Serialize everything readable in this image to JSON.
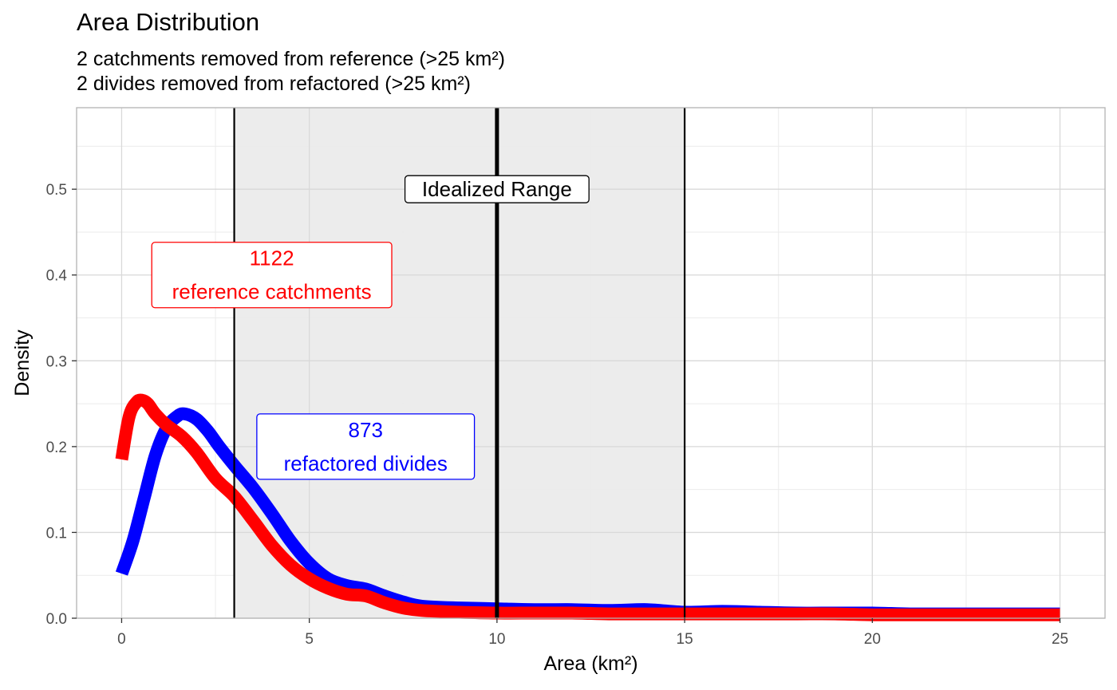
{
  "chart_data": {
    "type": "line",
    "title": "Area Distribution",
    "subtitle": [
      "2 catchments removed from reference (>25 km²)",
      "2 divides removed from refactored (>25 km²)"
    ],
    "xlabel": "Area (km²)",
    "ylabel": "Density",
    "xlim": [
      -1.2,
      26.2
    ],
    "ylim": [
      0,
      0.595
    ],
    "x_ticks": [
      0,
      5,
      10,
      15,
      20,
      25
    ],
    "x_tick_labels": [
      "0",
      "5",
      "10",
      "15",
      "20",
      "25"
    ],
    "y_ticks": [
      0.0,
      0.1,
      0.2,
      0.3,
      0.4,
      0.5
    ],
    "y_tick_labels": [
      "0.0",
      "0.1",
      "0.2",
      "0.3",
      "0.4",
      "0.5"
    ],
    "grid": true,
    "shaded_range": {
      "from": 3,
      "to": 15,
      "color": "#ececec"
    },
    "vlines": [
      {
        "x": 3,
        "weight": "thin"
      },
      {
        "x": 10,
        "weight": "thick"
      },
      {
        "x": 15,
        "weight": "thin"
      }
    ],
    "annotations": [
      {
        "id": "idealized",
        "lines": [
          "Idealized Range"
        ],
        "x": 10,
        "y": 0.5,
        "color": "#000000"
      },
      {
        "id": "reference",
        "lines": [
          "1122",
          "reference catchments"
        ],
        "x": 4,
        "y": 0.4,
        "color": "#ff0000"
      },
      {
        "id": "refactored",
        "lines": [
          "873",
          "refactored divides"
        ],
        "x": 6.5,
        "y": 0.2,
        "color": "#0000ff"
      }
    ],
    "series": [
      {
        "color": "#0000ff",
        "x": [
          0,
          0.3,
          0.6,
          0.9,
          1.2,
          1.5,
          1.7,
          2.0,
          2.3,
          2.6,
          3.0,
          3.5,
          4.0,
          4.5,
          5.0,
          5.5,
          6.0,
          6.5,
          7.0,
          7.5,
          8.0,
          9.0,
          10.0,
          11.0,
          12.0,
          13.0,
          14.0,
          15.0,
          16.0,
          17.0,
          18.0,
          19.0,
          20.0,
          21.0,
          22.0,
          23.0,
          24.0,
          25.0
        ],
        "y": [
          0.052,
          0.09,
          0.14,
          0.19,
          0.222,
          0.236,
          0.238,
          0.232,
          0.218,
          0.2,
          0.178,
          0.152,
          0.122,
          0.09,
          0.064,
          0.046,
          0.038,
          0.034,
          0.026,
          0.019,
          0.014,
          0.012,
          0.011,
          0.01,
          0.01,
          0.009,
          0.01,
          0.007,
          0.008,
          0.007,
          0.006,
          0.006,
          0.006,
          0.005,
          0.005,
          0.005,
          0.005,
          0.005
        ]
      },
      {
        "color": "#ff0000",
        "x": [
          0,
          0.2,
          0.4,
          0.55,
          0.7,
          0.9,
          1.2,
          1.6,
          2.0,
          2.5,
          3.0,
          3.5,
          4.0,
          4.5,
          5.0,
          5.5,
          6.0,
          6.5,
          7.0,
          7.5,
          8.0,
          9.0,
          10.0,
          11.0,
          12.0,
          13.0,
          14.0,
          15.0,
          16.0,
          17.0,
          18.0,
          19.0,
          20.0,
          21.0,
          22.0,
          23.0,
          24.0,
          25.0
        ],
        "y": [
          0.185,
          0.235,
          0.252,
          0.254,
          0.25,
          0.238,
          0.225,
          0.212,
          0.193,
          0.163,
          0.142,
          0.114,
          0.085,
          0.062,
          0.046,
          0.035,
          0.028,
          0.026,
          0.018,
          0.012,
          0.009,
          0.007,
          0.006,
          0.006,
          0.006,
          0.005,
          0.005,
          0.005,
          0.005,
          0.005,
          0.005,
          0.005,
          0.004,
          0.004,
          0.004,
          0.004,
          0.004,
          0.004
        ]
      }
    ]
  }
}
